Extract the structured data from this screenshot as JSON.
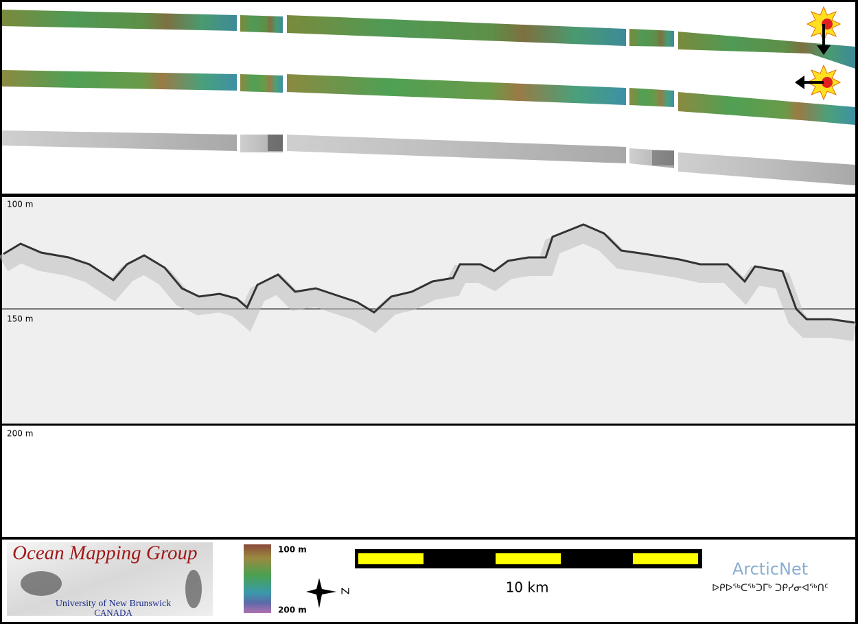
{
  "profile": {
    "depth_labels": [
      "100 m",
      "150 m",
      "200 m"
    ]
  },
  "logo": {
    "title": "Ocean Mapping Group",
    "subtitle": "University of New Brunswick",
    "country": "CANADA"
  },
  "colorbar": {
    "top": "100 m",
    "bottom": "200 m"
  },
  "compass": {
    "label": "Z"
  },
  "scale_bar": {
    "label": "10 km"
  },
  "partner": {
    "name": "ArcticNet",
    "syllabics": "ᐅᑭᐅᖅᑕᖅᑐᒥᒃ ᑐᑭᓯᓂᐊᖅᑎᑦ"
  }
}
